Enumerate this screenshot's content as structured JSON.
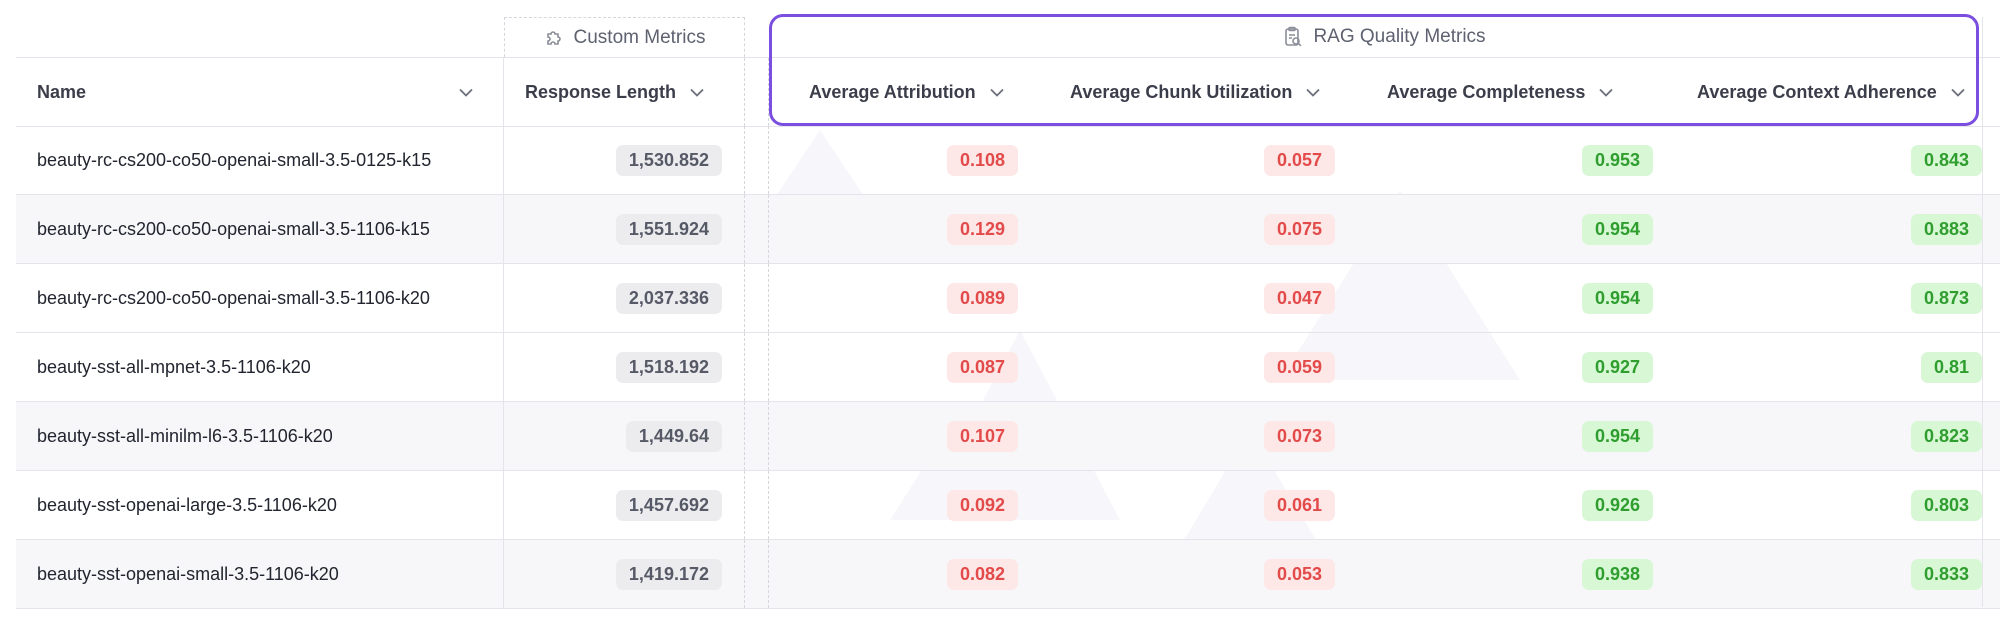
{
  "groups": {
    "custom": {
      "label": "Custom Metrics",
      "icon": "puzzle-icon"
    },
    "rag": {
      "label": "RAG Quality Metrics",
      "icon": "clipboard-search-icon"
    }
  },
  "headers": {
    "name": "Name",
    "response_length": "Response Length",
    "avg_attribution": "Average Attribution",
    "avg_chunk_utilization": "Average Chunk Utilization",
    "avg_completeness": "Average Completeness",
    "avg_context_adherence": "Average Context Adherence"
  },
  "colors": {
    "accent": "#7a4fe0",
    "bad": "#e34a4a",
    "bad_bg": "#fde7e7",
    "good": "#2f9e2f",
    "good_bg": "#d7f7d5"
  },
  "rows": [
    {
      "name": "beauty-rc-cs200-co50-openai-small-3.5-0125-k15",
      "response_length": "1,530.852",
      "attribution": "0.108",
      "chunk": "0.057",
      "completeness": "0.953",
      "adherence": "0.843"
    },
    {
      "name": "beauty-rc-cs200-co50-openai-small-3.5-1106-k15",
      "response_length": "1,551.924",
      "attribution": "0.129",
      "chunk": "0.075",
      "completeness": "0.954",
      "adherence": "0.883"
    },
    {
      "name": "beauty-rc-cs200-co50-openai-small-3.5-1106-k20",
      "response_length": "2,037.336",
      "attribution": "0.089",
      "chunk": "0.047",
      "completeness": "0.954",
      "adherence": "0.873"
    },
    {
      "name": "beauty-sst-all-mpnet-3.5-1106-k20",
      "response_length": "1,518.192",
      "attribution": "0.087",
      "chunk": "0.059",
      "completeness": "0.927",
      "adherence": "0.81"
    },
    {
      "name": "beauty-sst-all-minilm-l6-3.5-1106-k20",
      "response_length": "1,449.64",
      "attribution": "0.107",
      "chunk": "0.073",
      "completeness": "0.954",
      "adherence": "0.823"
    },
    {
      "name": "beauty-sst-openai-large-3.5-1106-k20",
      "response_length": "1,457.692",
      "attribution": "0.092",
      "chunk": "0.061",
      "completeness": "0.926",
      "adherence": "0.803"
    },
    {
      "name": "beauty-sst-openai-small-3.5-1106-k20",
      "response_length": "1,419.172",
      "attribution": "0.082",
      "chunk": "0.053",
      "completeness": "0.938",
      "adherence": "0.833"
    }
  ]
}
